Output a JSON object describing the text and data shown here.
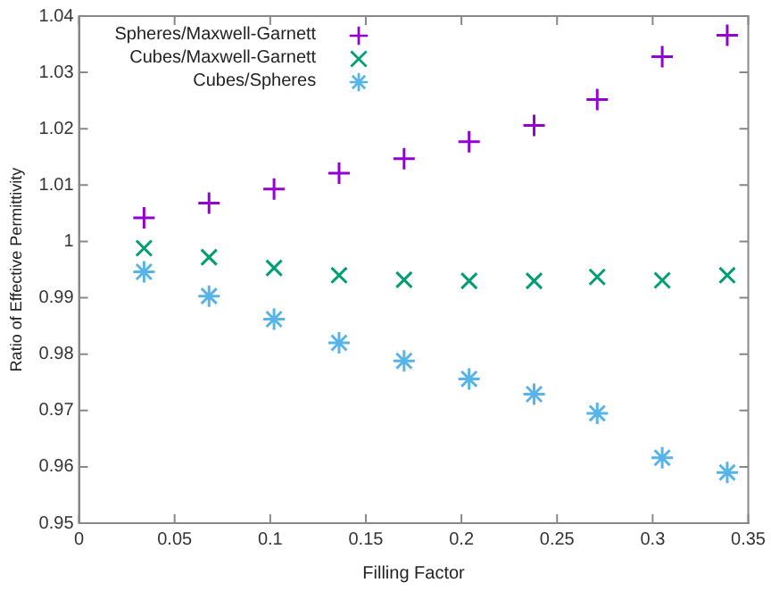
{
  "chart_data": {
    "type": "scatter",
    "xlabel": "Filling Factor",
    "ylabel": "Ratio of Effective Permittivity",
    "x": [
      0.034,
      0.068,
      0.102,
      0.136,
      0.17,
      0.204,
      0.238,
      0.271,
      0.305,
      0.339
    ],
    "series": [
      {
        "name": "Spheres/Maxwell-Garnett",
        "color": "#9400d3",
        "marker": "cross",
        "values": [
          1.0042,
          1.0068,
          1.0093,
          1.0121,
          1.0147,
          1.0177,
          1.0206,
          1.0252,
          1.0328,
          1.0366
        ]
      },
      {
        "name": "Cubes/Maxwell-Garnett",
        "color": "#009e73",
        "marker": "cross",
        "values": [
          0.9988,
          0.9972,
          0.9953,
          0.994,
          0.9932,
          0.993,
          0.993,
          0.9937,
          0.9931,
          0.994
        ]
      },
      {
        "name": "Cubes/Spheres",
        "color": "#56b4e9",
        "marker": "cross",
        "values": [
          0.9946,
          0.9903,
          0.9862,
          0.982,
          0.9788,
          0.9756,
          0.9729,
          0.9695,
          0.9616,
          0.959
        ]
      }
    ],
    "xlim": [
      0,
      0.35
    ],
    "xticks": [
      0,
      0.05,
      0.1,
      0.15,
      0.2,
      0.25,
      0.3,
      0.35
    ],
    "ylim": [
      0.95,
      1.04
    ],
    "yticks": [
      0.95,
      0.96,
      0.97,
      0.98,
      0.99,
      1,
      1.01,
      1.02,
      1.03,
      1.04
    ],
    "grid": false,
    "legend": "top left"
  }
}
